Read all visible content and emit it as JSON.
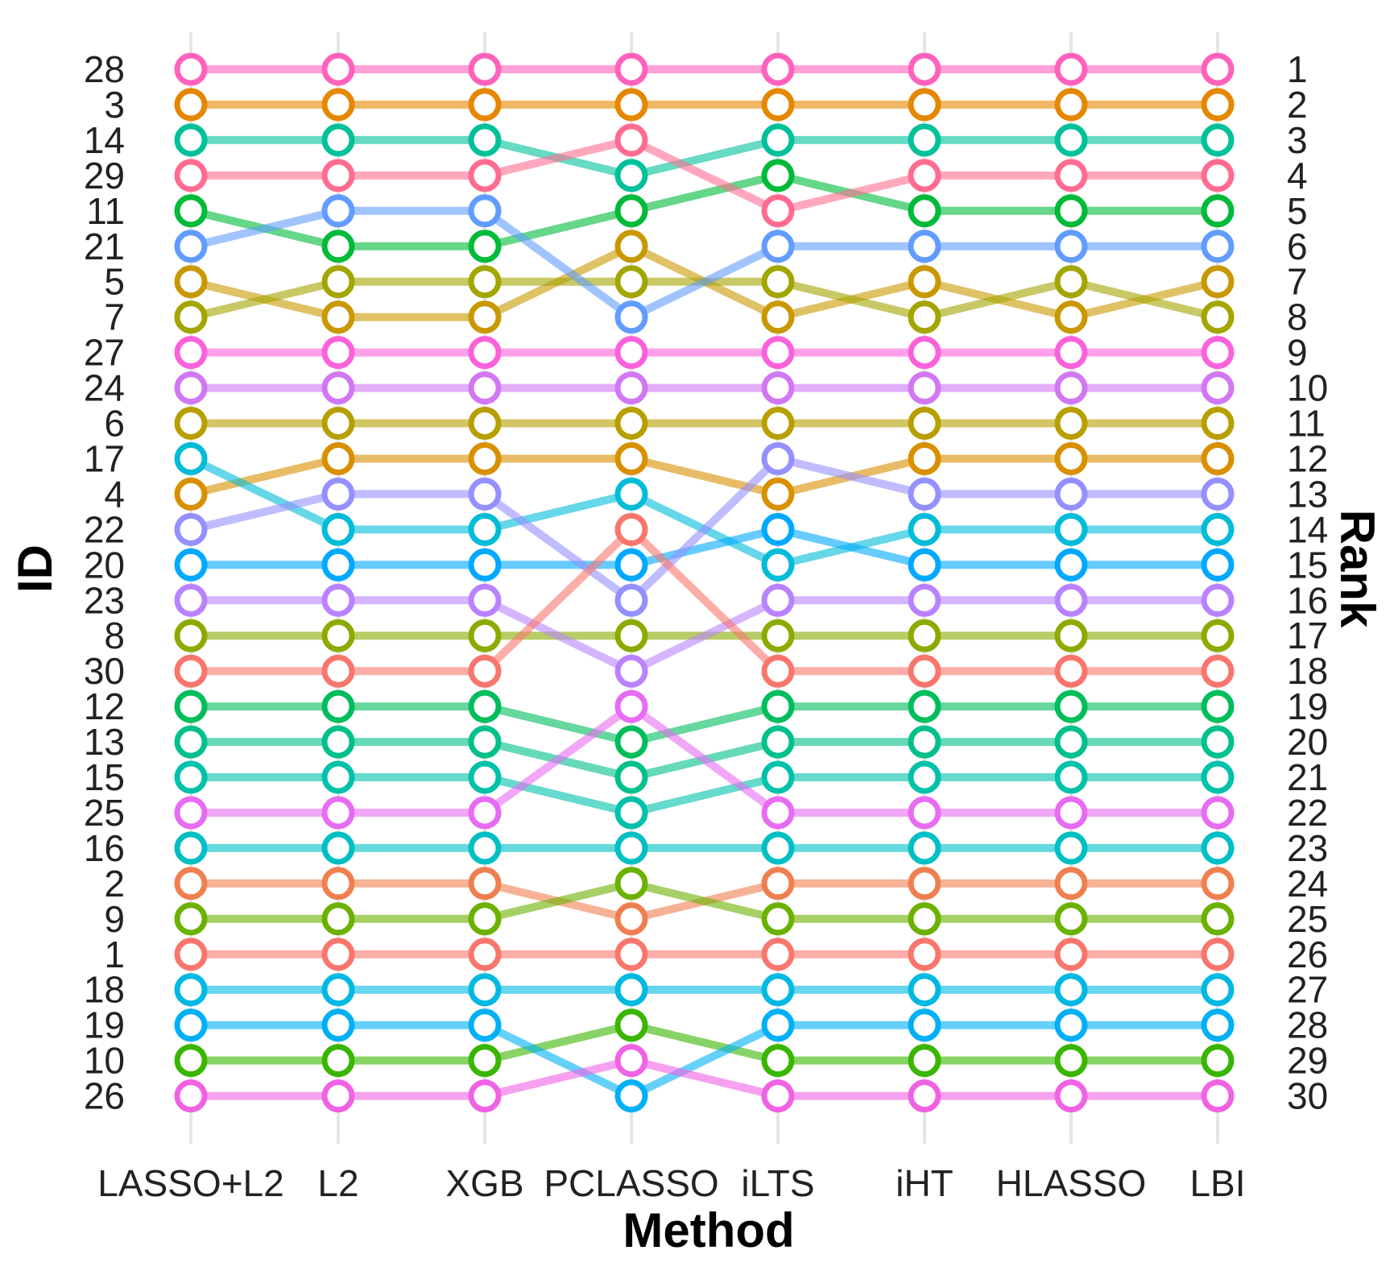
{
  "chart_data": {
    "type": "line",
    "xlabel": "Method",
    "ylabel": "ID",
    "ylabel_right": "Rank",
    "methods": [
      "LASSO+L2",
      "L2",
      "XGB",
      "PCLASSO",
      "iLTS",
      "iHT",
      "HLASSO",
      "LBI"
    ],
    "rank_labels": [
      "1",
      "2",
      "3",
      "4",
      "5",
      "6",
      "7",
      "8",
      "9",
      "10",
      "11",
      "12",
      "13",
      "14",
      "15",
      "16",
      "17",
      "18",
      "19",
      "20",
      "21",
      "22",
      "23",
      "24",
      "25",
      "26",
      "27",
      "28",
      "29",
      "30"
    ],
    "id_labels": [
      "28",
      "3",
      "14",
      "29",
      "11",
      "21",
      "5",
      "7",
      "27",
      "24",
      "6",
      "17",
      "4",
      "22",
      "20",
      "23",
      "8",
      "30",
      "12",
      "13",
      "15",
      "25",
      "16",
      "2",
      "9",
      "1",
      "18",
      "19",
      "10",
      "26"
    ],
    "grid": "vertical",
    "series": [
      {
        "name": "1",
        "color": "#F8766D",
        "ranks": [
          26,
          26,
          26,
          26,
          26,
          26,
          26,
          26
        ]
      },
      {
        "name": "2",
        "color": "#F07F50",
        "ranks": [
          24,
          24,
          24,
          25,
          24,
          24,
          24,
          24
        ]
      },
      {
        "name": "3",
        "color": "#E58700",
        "ranks": [
          2,
          2,
          2,
          2,
          2,
          2,
          2,
          2
        ]
      },
      {
        "name": "4",
        "color": "#D89000",
        "ranks": [
          13,
          12,
          12,
          12,
          13,
          12,
          12,
          12
        ]
      },
      {
        "name": "5",
        "color": "#C99800",
        "ranks": [
          7,
          8,
          8,
          6,
          8,
          7,
          8,
          7
        ]
      },
      {
        "name": "6",
        "color": "#B79F00",
        "ranks": [
          11,
          11,
          11,
          11,
          11,
          11,
          11,
          11
        ]
      },
      {
        "name": "7",
        "color": "#A3A500",
        "ranks": [
          8,
          7,
          7,
          7,
          7,
          8,
          7,
          8
        ]
      },
      {
        "name": "8",
        "color": "#8BAB00",
        "ranks": [
          17,
          17,
          17,
          17,
          17,
          17,
          17,
          17
        ]
      },
      {
        "name": "9",
        "color": "#6BB100",
        "ranks": [
          25,
          25,
          25,
          24,
          25,
          25,
          25,
          25
        ]
      },
      {
        "name": "10",
        "color": "#39B600",
        "ranks": [
          29,
          29,
          29,
          28,
          29,
          29,
          29,
          29
        ]
      },
      {
        "name": "11",
        "color": "#00BA38",
        "ranks": [
          5,
          6,
          6,
          5,
          4,
          5,
          5,
          5
        ]
      },
      {
        "name": "12",
        "color": "#00BD5C",
        "ranks": [
          19,
          19,
          19,
          20,
          19,
          19,
          19,
          19
        ]
      },
      {
        "name": "13",
        "color": "#00C08B",
        "ranks": [
          20,
          20,
          20,
          21,
          20,
          20,
          20,
          20
        ]
      },
      {
        "name": "14",
        "color": "#00C19A",
        "ranks": [
          3,
          3,
          3,
          4,
          3,
          3,
          3,
          3
        ]
      },
      {
        "name": "15",
        "color": "#00C1AA",
        "ranks": [
          21,
          21,
          21,
          22,
          21,
          21,
          21,
          21
        ]
      },
      {
        "name": "16",
        "color": "#00BFC4",
        "ranks": [
          23,
          23,
          23,
          23,
          23,
          23,
          23,
          23
        ]
      },
      {
        "name": "17",
        "color": "#00BCD8",
        "ranks": [
          12,
          14,
          14,
          13,
          15,
          14,
          14,
          14
        ]
      },
      {
        "name": "18",
        "color": "#00B9E3",
        "ranks": [
          27,
          27,
          27,
          27,
          27,
          27,
          27,
          27
        ]
      },
      {
        "name": "19",
        "color": "#00B0F6",
        "ranks": [
          28,
          28,
          28,
          30,
          28,
          28,
          28,
          28
        ]
      },
      {
        "name": "20",
        "color": "#00A9FF",
        "ranks": [
          15,
          15,
          15,
          15,
          14,
          15,
          15,
          15
        ]
      },
      {
        "name": "21",
        "color": "#619CFF",
        "ranks": [
          6,
          5,
          5,
          8,
          6,
          6,
          6,
          6
        ]
      },
      {
        "name": "22",
        "color": "#9590FF",
        "ranks": [
          14,
          13,
          13,
          16,
          12,
          13,
          13,
          13
        ]
      },
      {
        "name": "23",
        "color": "#B983FF",
        "ranks": [
          16,
          16,
          16,
          18,
          16,
          16,
          16,
          16
        ]
      },
      {
        "name": "24",
        "color": "#D177F4",
        "ranks": [
          10,
          10,
          10,
          10,
          10,
          10,
          10,
          10
        ]
      },
      {
        "name": "25",
        "color": "#E76BF3",
        "ranks": [
          22,
          22,
          22,
          19,
          22,
          22,
          22,
          22
        ]
      },
      {
        "name": "26",
        "color": "#F062E4",
        "ranks": [
          30,
          30,
          30,
          29,
          30,
          30,
          30,
          30
        ]
      },
      {
        "name": "27",
        "color": "#FA62DB",
        "ranks": [
          9,
          9,
          9,
          9,
          9,
          9,
          9,
          9
        ]
      },
      {
        "name": "28",
        "color": "#FF62BC",
        "ranks": [
          1,
          1,
          1,
          1,
          1,
          1,
          1,
          1
        ]
      },
      {
        "name": "29",
        "color": "#FF6C91",
        "ranks": [
          4,
          4,
          4,
          3,
          5,
          4,
          4,
          4
        ]
      },
      {
        "name": "30",
        "color": "#F8766D",
        "ranks": [
          18,
          18,
          18,
          14,
          18,
          18,
          18,
          18
        ]
      }
    ]
  }
}
